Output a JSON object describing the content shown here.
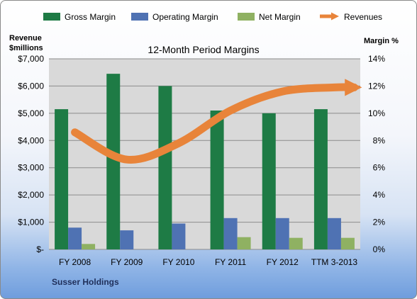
{
  "chart_data": {
    "type": "bar",
    "title": "12-Month Period Margins",
    "footer_label": "Susser Holdings",
    "y_left_label": [
      "Revenue",
      "$millions"
    ],
    "y_right_label": "Margin %",
    "categories": [
      "FY 2008",
      "FY 2009",
      "FY 2010",
      "FY 2011",
      "FY 2012",
      "TTM 3-2013"
    ],
    "y_left_ticks": [
      "$-",
      "$1,000",
      "$2,000",
      "$3,000",
      "$4,000",
      "$5,000",
      "$6,000",
      "$7,000"
    ],
    "y_right_ticks": [
      "0%",
      "2%",
      "4%",
      "6%",
      "8%",
      "10%",
      "12%",
      "14%"
    ],
    "ylim_left": [
      0,
      7000
    ],
    "ylim_right": [
      0,
      14
    ],
    "series": [
      {
        "name": "Gross Margin",
        "kind": "bar",
        "axis": "right",
        "color": "#1e7b45",
        "values": [
          10.3,
          12.9,
          12.0,
          10.2,
          10.0,
          10.3
        ]
      },
      {
        "name": "Operating Margin",
        "kind": "bar",
        "axis": "right",
        "color": "#4f72b3",
        "values": [
          1.6,
          1.4,
          1.9,
          2.3,
          2.3,
          2.3
        ]
      },
      {
        "name": "Net Margin",
        "kind": "bar",
        "axis": "right",
        "color": "#8fb162",
        "values": [
          0.4,
          0.0,
          0.0,
          0.9,
          0.85,
          0.85
        ]
      },
      {
        "name": "Revenues",
        "kind": "line",
        "axis": "left",
        "color": "#e8843a",
        "values": [
          4300,
          3300,
          3900,
          5100,
          5800,
          5950
        ]
      }
    ],
    "grid": true,
    "legend": "top"
  }
}
